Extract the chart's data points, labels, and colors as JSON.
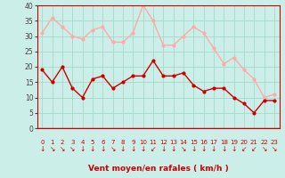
{
  "hours": [
    0,
    1,
    2,
    3,
    4,
    5,
    6,
    7,
    8,
    9,
    10,
    11,
    12,
    13,
    14,
    15,
    16,
    17,
    18,
    19,
    20,
    21,
    22,
    23
  ],
  "vent_moyen": [
    19,
    15,
    20,
    13,
    10,
    16,
    17,
    13,
    15,
    17,
    17,
    22,
    17,
    17,
    18,
    14,
    12,
    13,
    13,
    10,
    8,
    5,
    9,
    9
  ],
  "rafales": [
    31,
    36,
    33,
    30,
    29,
    32,
    33,
    28,
    28,
    31,
    40,
    35,
    27,
    27,
    30,
    33,
    31,
    26,
    21,
    23,
    19,
    16,
    10,
    11
  ],
  "color_moyen": "#cc0000",
  "color_rafales": "#ffaaaa",
  "bg_color": "#cceee8",
  "grid_color": "#aaddcc",
  "xlabel": "Vent moyen/en rafales ( km/h )",
  "xlabel_color": "#cc0000",
  "ylim": [
    0,
    40
  ],
  "yticks": [
    0,
    5,
    10,
    15,
    20,
    25,
    30,
    35,
    40
  ],
  "spine_color": "#cc0000"
}
